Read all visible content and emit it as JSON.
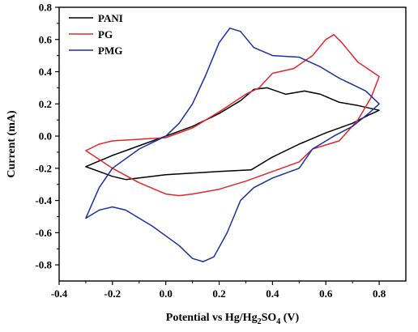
{
  "chart_data": {
    "type": "line",
    "title": "",
    "xlabel": "Potential vs Hg/Hg2SO4 (V)",
    "xlabel_parts": {
      "prefix": "Potential vs Hg/Hg",
      "sub1": "2",
      "mid": "SO",
      "sub2": "4",
      "suffix": " (V)"
    },
    "ylabel": "Current (mA)",
    "xlim": [
      -0.4,
      0.9
    ],
    "ylim": [
      -0.9,
      0.8
    ],
    "x_ticks": [
      -0.4,
      -0.2,
      0.0,
      0.2,
      0.4,
      0.6,
      0.8
    ],
    "x_tick_labels": [
      "-0.4",
      "-0.2",
      "0.0",
      "0.2",
      "0.4",
      "0.6",
      "0.8"
    ],
    "y_ticks": [
      0.8,
      0.6,
      0.4,
      0.2,
      0.0,
      -0.2,
      -0.4,
      -0.6,
      -0.8
    ],
    "y_tick_labels": [
      "0.8",
      "0.6",
      "0.4",
      "0.2",
      "0.0",
      "-0.2",
      "-0.4",
      "-0.6",
      "-0.8"
    ],
    "grid": false,
    "legend_position": "top-left",
    "series": [
      {
        "name": "PANI",
        "color": "#000000",
        "points": [
          [
            -0.3,
            -0.19
          ],
          [
            -0.2,
            -0.12
          ],
          [
            -0.1,
            -0.06
          ],
          [
            0.0,
            0.0
          ],
          [
            0.1,
            0.06
          ],
          [
            0.2,
            0.14
          ],
          [
            0.28,
            0.22
          ],
          [
            0.33,
            0.29
          ],
          [
            0.38,
            0.3
          ],
          [
            0.45,
            0.26
          ],
          [
            0.52,
            0.28
          ],
          [
            0.58,
            0.26
          ],
          [
            0.65,
            0.21
          ],
          [
            0.72,
            0.19
          ],
          [
            0.8,
            0.16
          ],
          [
            0.76,
            0.13
          ],
          [
            0.7,
            0.08
          ],
          [
            0.6,
            0.02
          ],
          [
            0.5,
            -0.05
          ],
          [
            0.4,
            -0.13
          ],
          [
            0.32,
            -0.21
          ],
          [
            0.2,
            -0.22
          ],
          [
            0.1,
            -0.23
          ],
          [
            0.0,
            -0.24
          ],
          [
            -0.1,
            -0.26
          ],
          [
            -0.15,
            -0.27
          ],
          [
            -0.2,
            -0.25
          ],
          [
            -0.3,
            -0.19
          ]
        ]
      },
      {
        "name": "PG",
        "color": "#e3262b",
        "points": [
          [
            -0.3,
            -0.09
          ],
          [
            -0.25,
            -0.05
          ],
          [
            -0.2,
            -0.03
          ],
          [
            -0.1,
            -0.02
          ],
          [
            0.0,
            -0.01
          ],
          [
            0.1,
            0.05
          ],
          [
            0.2,
            0.15
          ],
          [
            0.3,
            0.26
          ],
          [
            0.35,
            0.3
          ],
          [
            0.4,
            0.39
          ],
          [
            0.48,
            0.42
          ],
          [
            0.55,
            0.5
          ],
          [
            0.6,
            0.6
          ],
          [
            0.63,
            0.63
          ],
          [
            0.66,
            0.58
          ],
          [
            0.72,
            0.46
          ],
          [
            0.8,
            0.37
          ],
          [
            0.77,
            0.24
          ],
          [
            0.72,
            0.1
          ],
          [
            0.65,
            -0.03
          ],
          [
            0.55,
            -0.08
          ],
          [
            0.5,
            -0.16
          ],
          [
            0.4,
            -0.22
          ],
          [
            0.3,
            -0.28
          ],
          [
            0.2,
            -0.33
          ],
          [
            0.1,
            -0.36
          ],
          [
            0.05,
            -0.37
          ],
          [
            0.0,
            -0.36
          ],
          [
            -0.1,
            -0.29
          ],
          [
            -0.2,
            -0.2
          ],
          [
            -0.3,
            -0.09
          ]
        ]
      },
      {
        "name": "PMG",
        "color": "#1a2ea8",
        "points": [
          [
            -0.3,
            -0.51
          ],
          [
            -0.25,
            -0.32
          ],
          [
            -0.2,
            -0.2
          ],
          [
            -0.1,
            -0.08
          ],
          [
            0.0,
            0.0
          ],
          [
            0.05,
            0.08
          ],
          [
            0.1,
            0.2
          ],
          [
            0.15,
            0.38
          ],
          [
            0.2,
            0.58
          ],
          [
            0.24,
            0.67
          ],
          [
            0.28,
            0.65
          ],
          [
            0.33,
            0.55
          ],
          [
            0.4,
            0.5
          ],
          [
            0.5,
            0.49
          ],
          [
            0.58,
            0.43
          ],
          [
            0.65,
            0.36
          ],
          [
            0.7,
            0.32
          ],
          [
            0.75,
            0.28
          ],
          [
            0.8,
            0.2
          ],
          [
            0.76,
            0.14
          ],
          [
            0.7,
            0.06
          ],
          [
            0.63,
            0.0
          ],
          [
            0.55,
            -0.08
          ],
          [
            0.5,
            -0.2
          ],
          [
            0.4,
            -0.26
          ],
          [
            0.33,
            -0.32
          ],
          [
            0.28,
            -0.4
          ],
          [
            0.23,
            -0.6
          ],
          [
            0.18,
            -0.75
          ],
          [
            0.14,
            -0.78
          ],
          [
            0.1,
            -0.76
          ],
          [
            0.05,
            -0.68
          ],
          [
            -0.05,
            -0.56
          ],
          [
            -0.15,
            -0.46
          ],
          [
            -0.2,
            -0.44
          ],
          [
            -0.25,
            -0.46
          ],
          [
            -0.3,
            -0.51
          ]
        ]
      }
    ]
  }
}
